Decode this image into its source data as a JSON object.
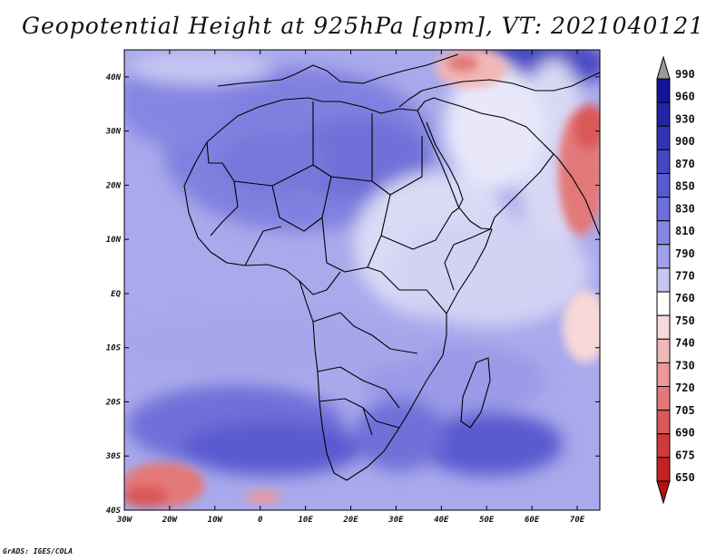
{
  "title": "Geopotential Height at 925hPa [gpm], VT: 2021040121",
  "credit": "GrADS: IGES/COLA",
  "map": {
    "variable_level": "925hPa",
    "units": "gpm",
    "valid_time": "2021040121",
    "lon_range": [
      -30,
      75
    ],
    "lat_range": [
      -40,
      45
    ],
    "lon_tick_values": [
      -30,
      -20,
      -10,
      0,
      10,
      20,
      30,
      40,
      50,
      60,
      70
    ],
    "lat_tick_values": [
      -40,
      -30,
      -20,
      -10,
      0,
      10,
      20,
      30,
      40
    ],
    "lon_tick_labels": [
      "30W",
      "20W",
      "10W",
      "0",
      "10E",
      "20E",
      "30E",
      "40E",
      "50E",
      "60E",
      "70E"
    ],
    "lat_tick_labels": [
      "40S",
      "30S",
      "20S",
      "10S",
      "EQ",
      "10N",
      "20N",
      "30N",
      "40N"
    ]
  },
  "colorbar": {
    "levels": [
      "990",
      "960",
      "930",
      "900",
      "870",
      "850",
      "830",
      "810",
      "790",
      "770",
      "760",
      "750",
      "740",
      "730",
      "720",
      "705",
      "690",
      "675",
      "650"
    ],
    "colors": [
      "#9a9a9a",
      "#14149a",
      "#2323a8",
      "#3232b5",
      "#4646c2",
      "#5a5ad0",
      "#6e6edb",
      "#8585e3",
      "#a0a0ea",
      "#c6c6f2",
      "#ffffff",
      "#f8d8d8",
      "#f2b8b8",
      "#eb9898",
      "#e37878",
      "#db5858",
      "#d03a3a",
      "#c42222",
      "#b01414"
    ]
  }
}
